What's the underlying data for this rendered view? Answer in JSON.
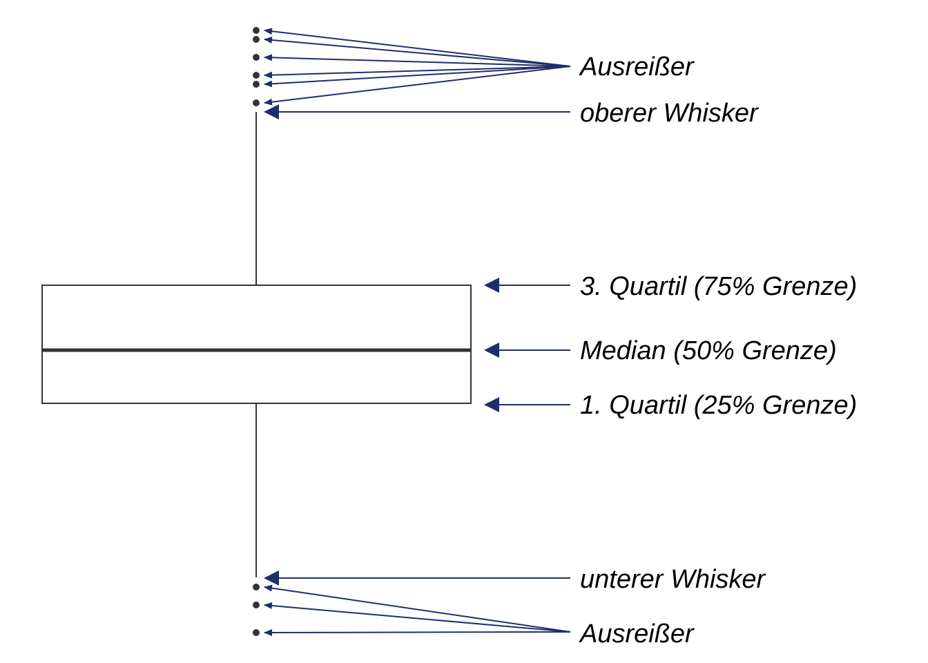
{
  "labels": {
    "outliers_top": "Ausreißer",
    "upper_whisker": "oberer Whisker",
    "q3": "3. Quartil (75% Grenze)",
    "median": "Median (50% Grenze)",
    "q1": "1. Quartil (25% Grenze)",
    "lower_whisker": "unterer Whisker",
    "outliers_bottom": "Ausreißer"
  },
  "colors": {
    "arrow": "#1f2d6b",
    "box_stroke": "#333333",
    "point": "#333333",
    "label_text": "#000000"
  }
}
